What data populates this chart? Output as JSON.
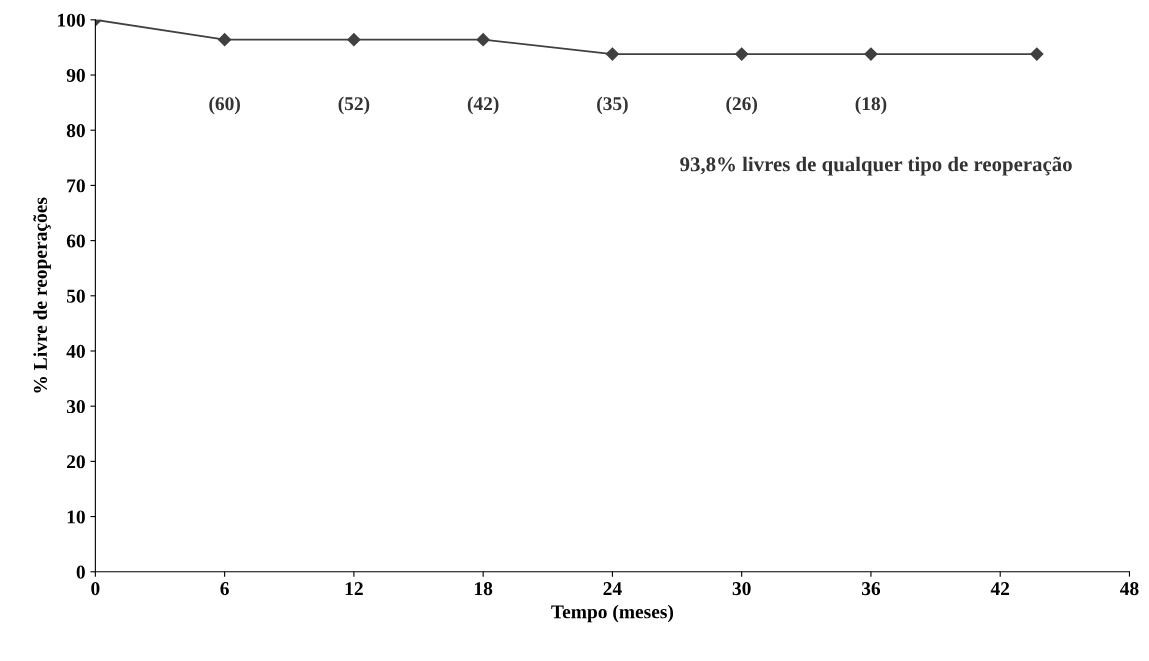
{
  "chart_data": {
    "type": "line",
    "xlabel": "Tempo (meses)",
    "ylabel": "% Livre de reoperações",
    "x": [
      0,
      6,
      12,
      18,
      24,
      30,
      36,
      43.7
    ],
    "series": [
      {
        "color": "#404040",
        "values": [
          100,
          96.4,
          96.4,
          96.4,
          93.8,
          93.8,
          93.8,
          93.8
        ]
      }
    ],
    "xlim": [
      0,
      48
    ],
    "xticks": [
      0,
      6,
      12,
      18,
      24,
      30,
      36,
      42,
      48
    ],
    "ylim": [
      0,
      100
    ],
    "yticks": [
      0,
      10,
      20,
      30,
      40,
      50,
      60,
      70,
      80,
      90,
      100
    ],
    "marker": "diamond",
    "line_style": "solid",
    "grid": false,
    "legend": false,
    "annotations": [
      "(60)",
      "(52)",
      "(42)",
      "(35)",
      "(26)",
      "(18)",
      "93,8% livres de qualquer tipo de reoperação"
    ]
  }
}
